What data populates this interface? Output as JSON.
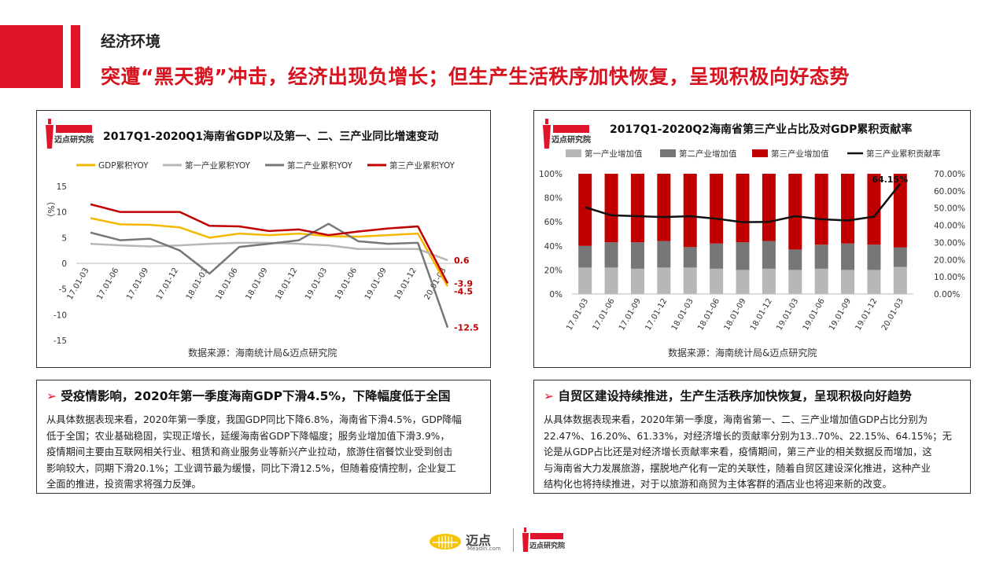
{
  "header": {
    "section": "经济环境",
    "headline": "突遭“黑天鹅”冲击，经济出现负增长；但生产生活秩序加快恢复，呈现积极向好态势"
  },
  "logo_text": "迈点研究院",
  "colors": {
    "brand_red": "#e0142b",
    "gdp": "#f5b800",
    "primary": "#b7b7b7",
    "secondary": "#777777",
    "tertiary": "#c00000",
    "contribution": "#111111"
  },
  "chart_data": [
    {
      "type": "line",
      "title": "2017Q1-2020Q1海南省GDP以及第一、二、三产业同比增速变动",
      "ylabel": "（%）",
      "ylim": [
        -15,
        15
      ],
      "yticks": [
        15,
        10,
        5,
        0,
        -5,
        -10,
        -15
      ],
      "categories": [
        "17.01-03",
        "17.01-06",
        "17.01-09",
        "17.01-12",
        "18.01-03",
        "18.01-06",
        "18.01-09",
        "18.01-12",
        "19.01-03",
        "19.01-06",
        "19.01-09",
        "19.01-12",
        "20.01-03"
      ],
      "x_tick_labels": [
        "17.01-03",
        "17.01-06",
        "17.01-09",
        "17.01-12",
        "18.01-03",
        "18.01-06",
        "18.01-09",
        "18.01-12",
        "19.01-03",
        "19.01-06",
        "19.01-09",
        "19.01-12",
        "20.01-03"
      ],
      "series": [
        {
          "name": "GDP累积YOY",
          "color": "#f5b800",
          "values": [
            8.8,
            7.6,
            7.5,
            7.0,
            5.0,
            5.8,
            5.5,
            5.8,
            5.3,
            5.2,
            5.5,
            5.8,
            -4.5
          ]
        },
        {
          "name": "第一产业累积YOY",
          "color": "#b7b7b7",
          "values": [
            3.8,
            3.5,
            3.3,
            3.5,
            3.8,
            4.0,
            4.0,
            3.8,
            3.5,
            2.8,
            2.8,
            2.8,
            0.6
          ]
        },
        {
          "name": "第二产业累积YOY",
          "color": "#777777",
          "values": [
            6.0,
            4.5,
            4.8,
            2.5,
            -2.0,
            3.2,
            3.8,
            4.5,
            7.7,
            4.3,
            3.8,
            4.0,
            -12.5
          ]
        },
        {
          "name": "第三产业累积YOY",
          "color": "#c00000",
          "values": [
            11.5,
            10.0,
            10.0,
            10.0,
            7.3,
            7.2,
            6.3,
            6.6,
            5.5,
            6.2,
            6.8,
            7.2,
            -3.9
          ]
        }
      ],
      "end_labels": [
        "0.6",
        "-3.9",
        "-4.5",
        "-12.5"
      ],
      "source": "数据来源：海南统计局&迈点研究院"
    },
    {
      "type": "bar",
      "subtype": "stacked-percent-with-line",
      "title": "2017Q1-2020Q2海南省第三产业占比及对GDP累积贡献率",
      "categories": [
        "17.01-03",
        "17.01-06",
        "17.01-09",
        "17.01-12",
        "18.01-03",
        "18.01-06",
        "18.01-09",
        "18.01-12",
        "19.01-03",
        "19.01-06",
        "19.01-09",
        "19.01-12",
        "20.01-03"
      ],
      "x_tick_labels": [
        "17.01-03",
        "17.01-06",
        "17.01-09",
        "17.01-12",
        "18.01-03",
        "18.01-06",
        "18.01-09",
        "18.01-12",
        "19.01-03",
        "19.01-06",
        "19.01-09",
        "19.01-12",
        "20.01-03"
      ],
      "y_left_ticks": [
        "100%",
        "80%",
        "60%",
        "40%",
        "20%",
        "0%"
      ],
      "y_right_ticks": [
        "70.00%",
        "60.00%",
        "50.00%",
        "40.00%",
        "30.00%",
        "20.00%",
        "10.00%",
        "0.00%"
      ],
      "ylim_left": [
        0,
        100
      ],
      "ylim_right": [
        0,
        70
      ],
      "series": [
        {
          "name": "第一产业增加值",
          "color": "#b7b7b7",
          "values": [
            22,
            22,
            21,
            22,
            22,
            21,
            20,
            21,
            20,
            21,
            20,
            20,
            22.47
          ]
        },
        {
          "name": "第二产业增加值",
          "color": "#777777",
          "values": [
            18,
            21,
            22,
            22,
            17,
            21,
            23,
            23,
            17,
            20,
            22,
            21,
            16.2
          ]
        },
        {
          "name": "第三产业增加值",
          "color": "#c00000",
          "values": [
            60,
            57,
            57,
            56,
            61,
            58,
            57,
            56,
            63,
            59,
            58,
            59,
            61.33
          ]
        },
        {
          "name": "第三产业累积贡献率",
          "color": "#111111",
          "axis": "right",
          "values": [
            50.5,
            45.8,
            45.3,
            44.8,
            45.3,
            43.8,
            41.8,
            42.0,
            45.3,
            43.5,
            42.8,
            45.0,
            64.15
          ]
        }
      ],
      "annotation": "64.15%",
      "source": "数据来源：海南统计局&迈点研究院"
    }
  ],
  "textbox_left": {
    "title": "受疫情影响，2020年第一季度海南GDP下滑4.5%，下降幅度低于全国",
    "lines": [
      "从具体数据表现来看，2020年第一季度，我国GDP同比下降6.8%，海南省下滑4.5%，GDP降幅",
      "低于全国；农业基础稳固，实现正增长，延缓海南省GDP下降幅度；服务业增加值下滑3.9%，",
      "疫情期间主要由互联网相关行业、租赁和商业服务业等新兴产业拉动，旅游住宿餐饮业受到创击",
      "影响较大，同期下滑20.1%；工业调节最为缓慢，同比下滑12.5%，但随着疫情控制，企业复工",
      "全面的推进，投资需求将强力反弹。"
    ]
  },
  "textbox_right": {
    "title": "自贸区建设持续推进，生产生活秩序加快恢复，呈现积极向好趋势",
    "lines": [
      "从具体数据表现来看，2020年第一季度，海南省第一、二、三产业增加值GDP占比分别为",
      "22.47%、16.20%、61.33%，对经济增长的贡献率分别为13..70%、22.15%、64.15%；无",
      "论是从GDP占比还是对经济增长贡献率来看，疫情期间，第三产业的相关数据反而增加，这",
      "与海南省大力发展旅游，摆脱地产化有一定的关联性，随着自贸区建设深化推进，这种产业",
      "结构化也将持续推进，对于以旅游和商贸为主体客群的酒店业也将迎来新的改变。"
    ]
  },
  "footer": {
    "brand": "迈点",
    "brand_sub": "Meadin.com",
    "institute": "迈点研究院"
  }
}
